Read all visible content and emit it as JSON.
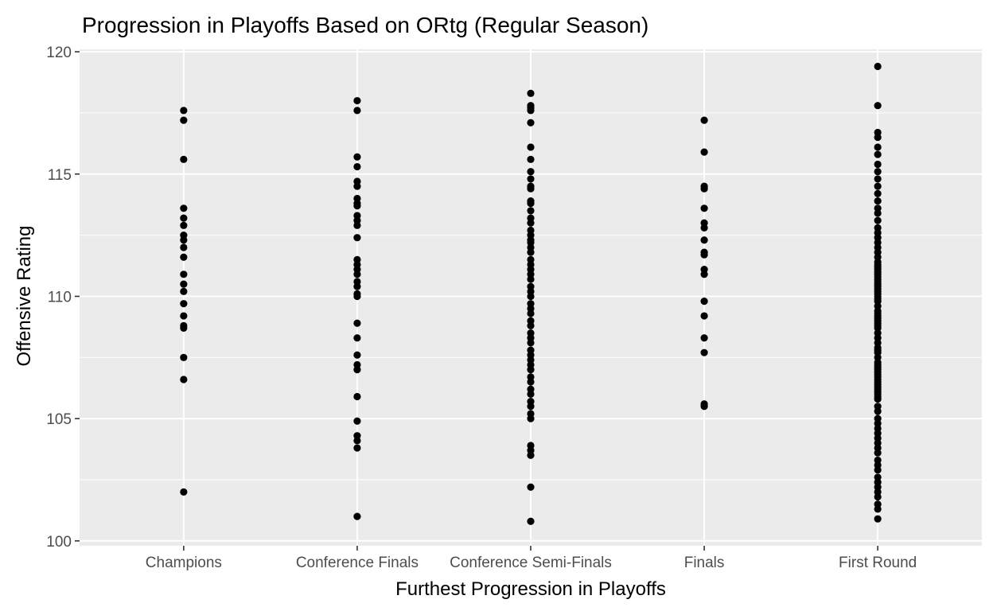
{
  "chart_data": {
    "type": "scatter",
    "title": "Progression in Playoffs Based on ORtg (Regular Season)",
    "xlabel": "Furthest Progression in Playoffs",
    "ylabel": "Offensive Rating",
    "categories": [
      "Champions",
      "Conference Finals",
      "Conference Semi-Finals",
      "Finals",
      "First Round"
    ],
    "ylim": [
      99.8,
      120.1
    ],
    "yticks": [
      100,
      105,
      110,
      115,
      120
    ],
    "grid": true,
    "panel_color": "#ebebeb",
    "point_color": "#000000",
    "series": [
      {
        "name": "Champions",
        "values": [
          117.6,
          117.2,
          115.6,
          113.6,
          113.2,
          112.9,
          112.5,
          112.3,
          112.0,
          111.6,
          110.9,
          110.5,
          110.2,
          109.7,
          109.2,
          108.8,
          108.7,
          107.5,
          106.6,
          102.0
        ]
      },
      {
        "name": "Conference Finals",
        "values": [
          118.0,
          117.6,
          115.7,
          115.3,
          114.7,
          114.5,
          114.0,
          113.8,
          113.7,
          113.3,
          113.1,
          112.9,
          112.4,
          111.5,
          111.3,
          111.1,
          110.9,
          110.6,
          110.4,
          110.1,
          110.0,
          108.9,
          108.3,
          107.6,
          107.2,
          107.0,
          105.9,
          104.9,
          104.3,
          104.1,
          103.8,
          101.0
        ]
      },
      {
        "name": "Conference Semi-Finals",
        "values": [
          118.3,
          117.8,
          117.7,
          117.6,
          117.1,
          116.1,
          115.6,
          115.1,
          114.8,
          114.5,
          114.4,
          113.9,
          113.8,
          113.5,
          113.2,
          113.0,
          112.7,
          112.5,
          112.3,
          112.2,
          112.0,
          111.8,
          111.5,
          111.3,
          111.1,
          110.9,
          110.7,
          110.4,
          110.2,
          110.0,
          109.7,
          109.5,
          109.3,
          109.0,
          108.8,
          108.5,
          108.3,
          108.1,
          107.8,
          107.6,
          107.4,
          107.2,
          107.0,
          106.7,
          106.5,
          106.2,
          106.0,
          105.7,
          105.5,
          105.2,
          105.0,
          103.9,
          103.7,
          103.5,
          102.2,
          100.8
        ]
      },
      {
        "name": "Finals",
        "values": [
          117.2,
          115.9,
          114.5,
          114.4,
          113.6,
          113.0,
          112.8,
          112.3,
          111.8,
          111.7,
          111.1,
          110.9,
          109.8,
          109.2,
          108.3,
          107.7,
          105.6,
          105.5
        ]
      },
      {
        "name": "First Round",
        "values": [
          119.4,
          117.8,
          116.7,
          116.5,
          116.1,
          115.8,
          115.4,
          115.1,
          114.8,
          114.5,
          114.2,
          113.9,
          113.6,
          113.4,
          113.1,
          112.8,
          112.6,
          112.4,
          112.2,
          112.0,
          111.8,
          111.6,
          111.4,
          111.3,
          111.2,
          111.1,
          111.0,
          110.9,
          110.8,
          110.7,
          110.6,
          110.5,
          110.4,
          110.3,
          110.2,
          110.1,
          110.0,
          109.9,
          109.8,
          109.6,
          109.4,
          109.3,
          109.2,
          109.1,
          109.0,
          108.9,
          108.8,
          108.7,
          108.5,
          108.3,
          108.1,
          107.9,
          107.8,
          107.7,
          107.5,
          107.3,
          107.2,
          107.1,
          107.0,
          106.9,
          106.8,
          106.7,
          106.6,
          106.5,
          106.4,
          106.3,
          106.2,
          106.1,
          106.0,
          105.9,
          105.8,
          105.5,
          105.3,
          105.0,
          104.8,
          104.6,
          104.4,
          104.2,
          104.0,
          103.8,
          103.6,
          103.3,
          103.1,
          102.9,
          102.6,
          102.4,
          102.2,
          102.0,
          101.8,
          101.5,
          101.3,
          100.9
        ]
      }
    ]
  }
}
